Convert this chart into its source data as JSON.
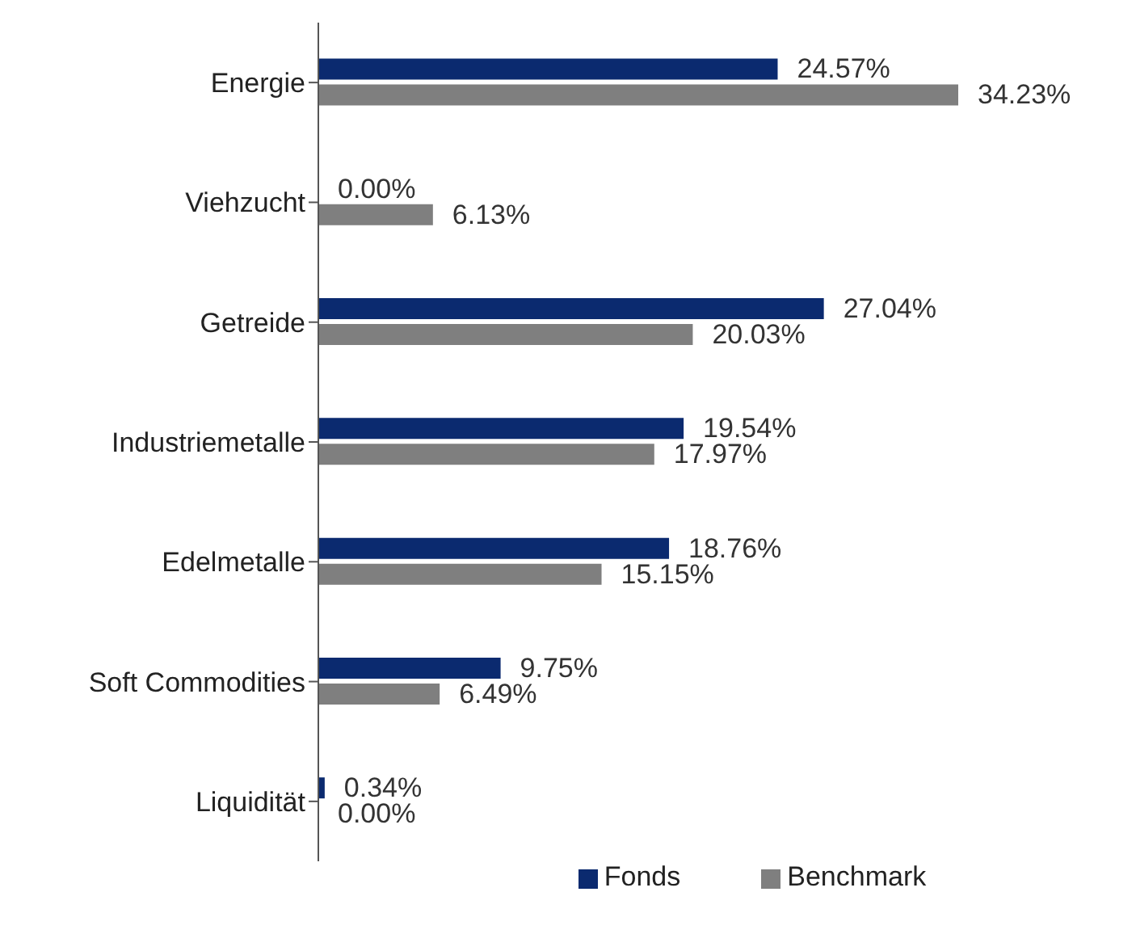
{
  "chart_data": {
    "type": "bar",
    "orientation": "horizontal",
    "categories": [
      "Energie",
      "Viehzucht",
      "Getreide",
      "Industriemetalle",
      "Edelmetalle",
      "Soft Commodities",
      "Liquidität"
    ],
    "series": [
      {
        "name": "Fonds",
        "color": "#0b2a6f",
        "values": [
          24.57,
          0,
          27.04,
          19.54,
          18.76,
          9.75,
          0.34
        ],
        "value_labels": [
          "24.57%",
          "0.00%",
          "27.04%",
          "19.54%",
          "18.76%",
          "9.75%",
          "0.34%"
        ]
      },
      {
        "name": "Benchmark",
        "color": "#7f7f7f",
        "values": [
          34.23,
          6.13,
          20.03,
          17.97,
          15.15,
          6.49,
          0
        ],
        "value_labels": [
          "34.23%",
          "6.13%",
          "20.03%",
          "17.97%",
          "15.15%",
          "6.49%",
          "0.00%"
        ]
      }
    ],
    "legend": "bottom",
    "grid": false
  }
}
